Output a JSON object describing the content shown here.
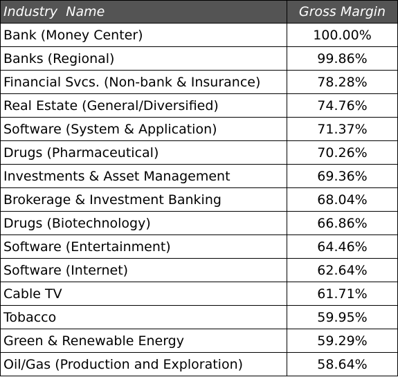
{
  "table": {
    "headers": {
      "industry": "Industry  Name",
      "margin": "Gross Margin"
    },
    "rows": [
      {
        "industry": "Bank (Money Center)",
        "margin": "100.00%"
      },
      {
        "industry": "Banks (Regional)",
        "margin": "99.86%"
      },
      {
        "industry": "Financial Svcs. (Non-bank & Insurance)",
        "margin": "78.28%"
      },
      {
        "industry": "Real Estate (General/Diversified)",
        "margin": "74.76%"
      },
      {
        "industry": "Software (System & Application)",
        "margin": "71.37%"
      },
      {
        "industry": "Drugs (Pharmaceutical)",
        "margin": "70.26%"
      },
      {
        "industry": "Investments & Asset Management",
        "margin": "69.36%"
      },
      {
        "industry": "Brokerage & Investment Banking",
        "margin": "68.04%"
      },
      {
        "industry": "Drugs (Biotechnology)",
        "margin": "66.86%"
      },
      {
        "industry": "Software (Entertainment)",
        "margin": "64.46%"
      },
      {
        "industry": "Software (Internet)",
        "margin": "62.64%"
      },
      {
        "industry": "Cable TV",
        "margin": "61.71%"
      },
      {
        "industry": "Tobacco",
        "margin": "59.95%"
      },
      {
        "industry": "Green & Renewable Energy",
        "margin": "59.29%"
      },
      {
        "industry": "Oil/Gas (Production and Exploration)",
        "margin": "58.64%"
      }
    ]
  },
  "colors": {
    "header_bg": "#545454",
    "header_text": "#ffffff",
    "border": "#000000"
  }
}
